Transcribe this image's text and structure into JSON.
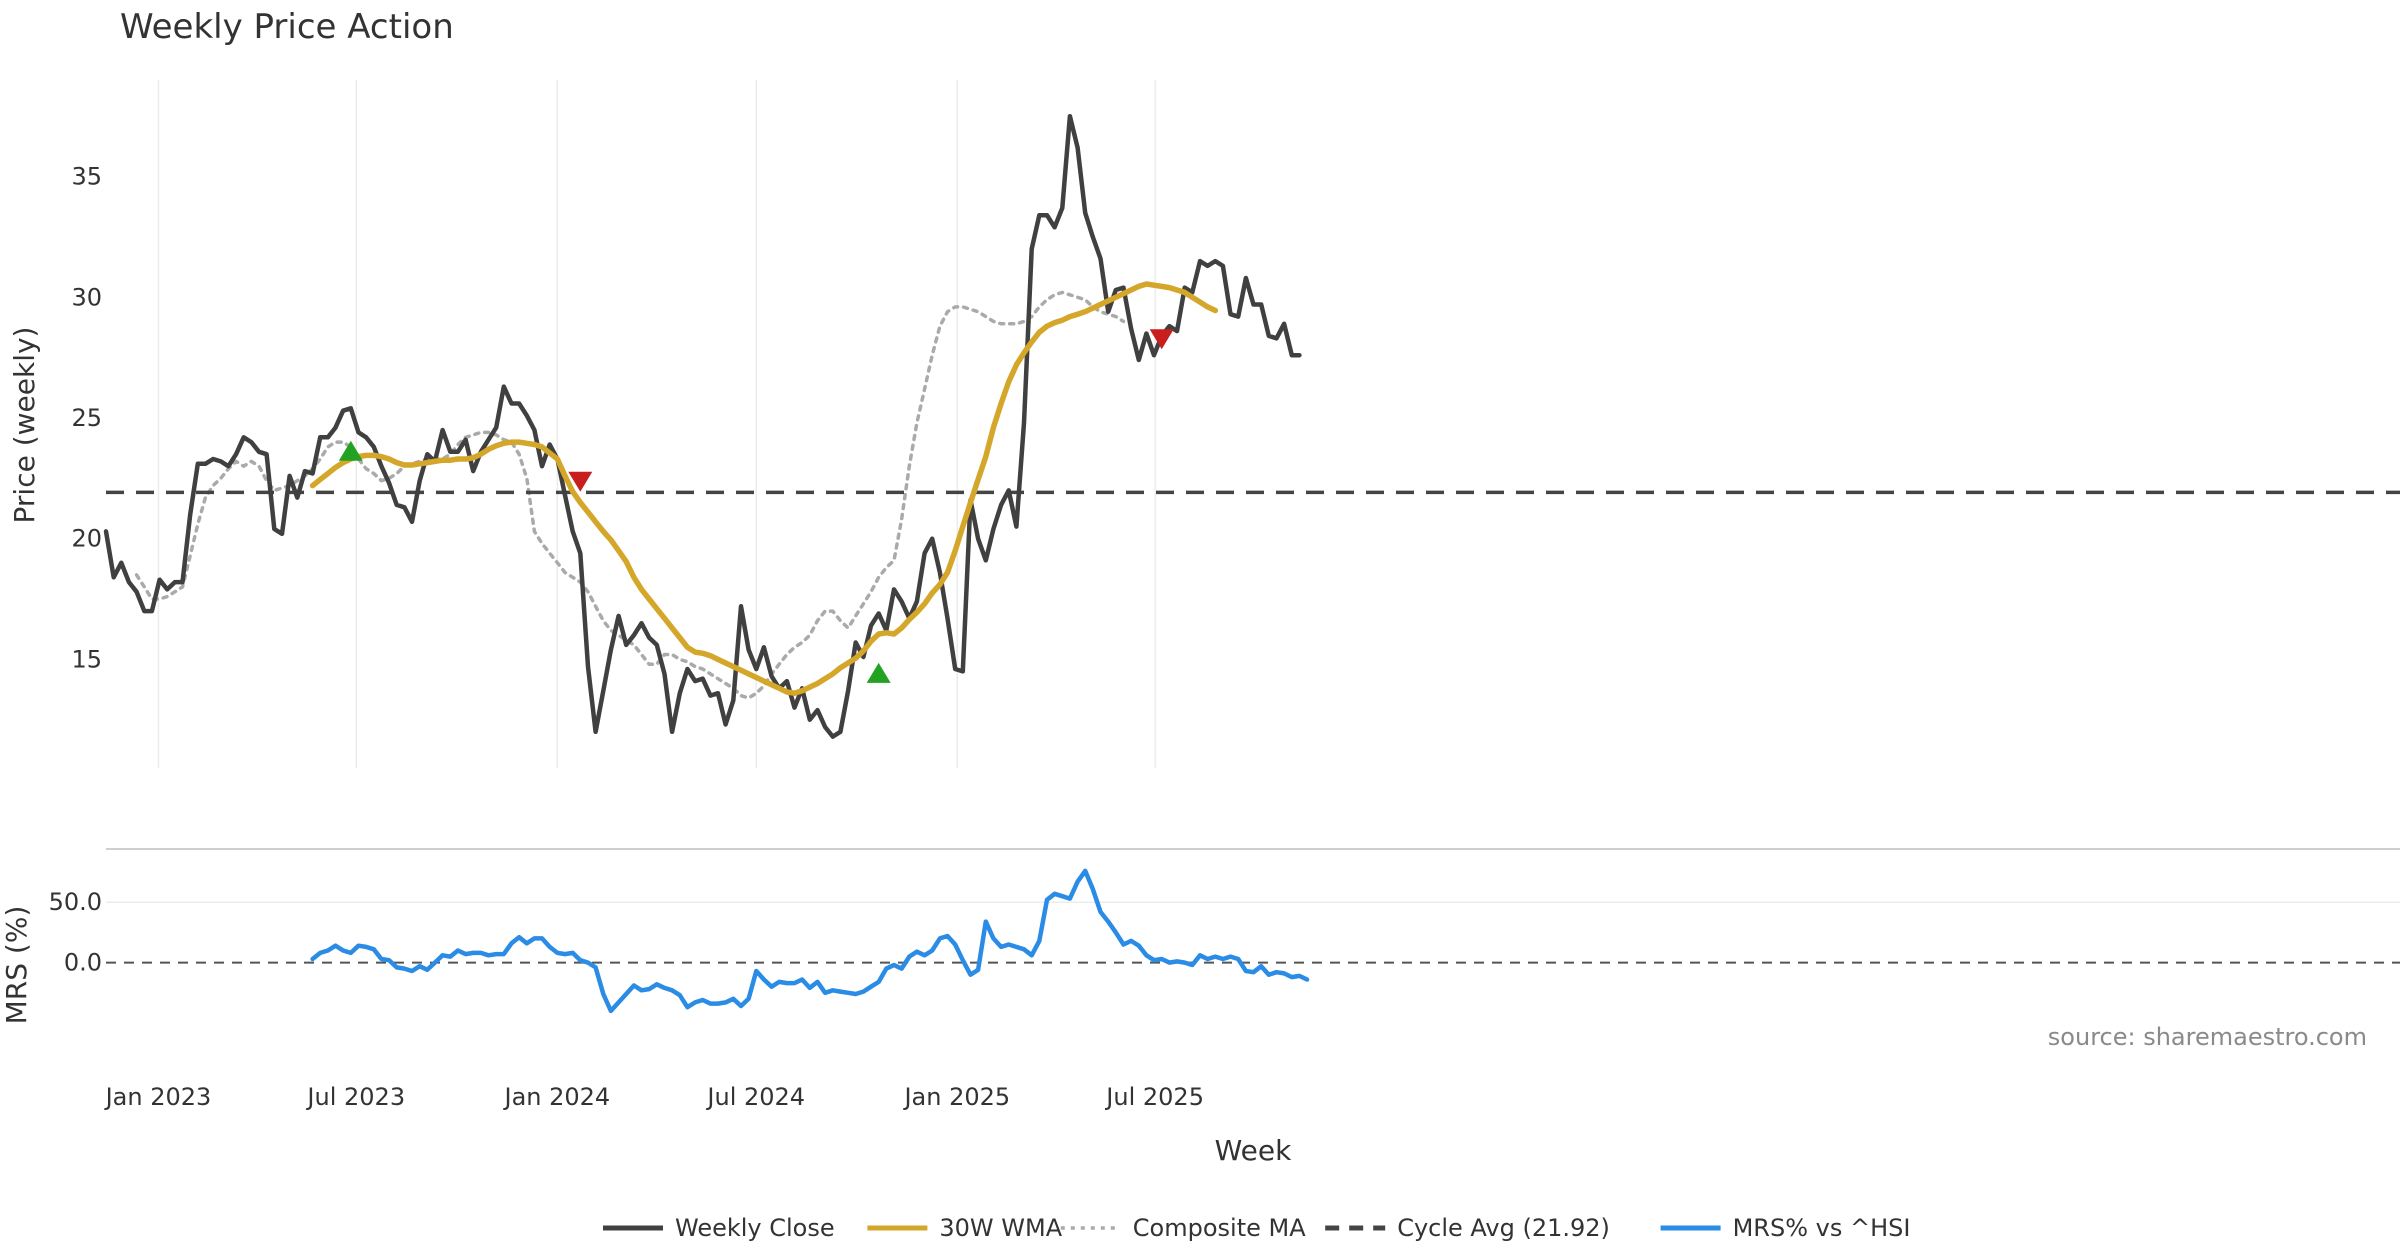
{
  "chart_data": {
    "type": "line",
    "title": "Weekly Price Action",
    "xlabel": "Week",
    "source": "source: sharemaestro.com",
    "x_ticks": [
      "Jan 2023",
      "Jul 2023",
      "Jan 2024",
      "Jul 2024",
      "Jan 2025",
      "Jul 2025"
    ],
    "start_date": "2022-11-14",
    "panels": [
      {
        "name": "price",
        "ylabel": "Price (weekly)",
        "ylim": [
          10.5,
          39
        ],
        "yticks": [
          15,
          20,
          25,
          30,
          35
        ],
        "ytick_labels": [
          "15",
          "20",
          "25",
          "30",
          "35"
        ]
      },
      {
        "name": "mrs",
        "ylabel": "MRS (%)",
        "ylim": [
          -60,
          85
        ],
        "yticks": [
          0,
          50
        ],
        "ytick_labels": [
          "0.0",
          "50.0"
        ]
      }
    ],
    "series": [
      {
        "name": "Weekly Close",
        "panel": "price",
        "color": "#404040",
        "style": "solid",
        "values": [
          20.3,
          18.4,
          19.0,
          18.2,
          17.8,
          17.0,
          17.0,
          18.3,
          17.9,
          18.2,
          18.2,
          21.0,
          23.1,
          23.1,
          23.3,
          23.2,
          23.0,
          23.5,
          24.2,
          24.0,
          23.6,
          23.5,
          20.4,
          20.2,
          22.6,
          21.7,
          22.8,
          22.7,
          24.2,
          24.2,
          24.6,
          25.3,
          25.4,
          24.4,
          24.2,
          23.8,
          23.0,
          22.3,
          21.4,
          21.3,
          20.7,
          22.4,
          23.5,
          23.2,
          24.5,
          23.6,
          23.6,
          24.1,
          22.8,
          23.6,
          24.1,
          24.6,
          26.3,
          25.6,
          25.6,
          25.1,
          24.5,
          23.0,
          23.9,
          23.3,
          21.8,
          20.3,
          19.4,
          14.7,
          12.0,
          13.7,
          15.4,
          16.8,
          15.6,
          16.0,
          16.5,
          15.9,
          15.6,
          14.4,
          12.0,
          13.6,
          14.6,
          14.1,
          14.2,
          13.5,
          13.6,
          12.3,
          13.3,
          17.2,
          15.4,
          14.6,
          15.5,
          14.3,
          13.8,
          14.1,
          13.0,
          13.8,
          12.5,
          12.9,
          12.2,
          11.8,
          12.0,
          13.7,
          15.7,
          15.1,
          16.4,
          16.9,
          16.2,
          17.9,
          17.4,
          16.7,
          17.4,
          19.4,
          20.0,
          18.6,
          16.7,
          14.6,
          14.5,
          21.6,
          20.0,
          19.1,
          20.4,
          21.4,
          22.0,
          20.5,
          24.8,
          32.0,
          33.4,
          33.4,
          32.9,
          33.7,
          37.5,
          36.2,
          33.5,
          32.5,
          31.6,
          29.4,
          30.3,
          30.4,
          28.7,
          27.4,
          28.5,
          27.6,
          28.4,
          28.8,
          28.6,
          30.4,
          30.2,
          31.5,
          31.3,
          31.5,
          31.3,
          29.3,
          29.2,
          30.8,
          29.7,
          29.7,
          28.4,
          28.3,
          28.9,
          27.6,
          27.6
        ]
      },
      {
        "name": "30W WMA",
        "panel": "price",
        "color": "#D4A62A",
        "style": "solid",
        "start_index": 27,
        "values": [
          22.2,
          22.45,
          22.7,
          22.95,
          23.15,
          23.3,
          23.4,
          23.45,
          23.45,
          23.4,
          23.3,
          23.15,
          23.05,
          23.05,
          23.1,
          23.15,
          23.2,
          23.25,
          23.25,
          23.3,
          23.3,
          23.35,
          23.5,
          23.7,
          23.85,
          23.95,
          24.0,
          24.0,
          23.95,
          23.9,
          23.8,
          23.55,
          23.3,
          22.6,
          21.95,
          21.5,
          21.1,
          20.7,
          20.3,
          19.95,
          19.5,
          19.05,
          18.4,
          17.9,
          17.5,
          17.1,
          16.7,
          16.3,
          15.9,
          15.5,
          15.3,
          15.25,
          15.15,
          15.0,
          14.85,
          14.7,
          14.55,
          14.4,
          14.25,
          14.1,
          13.95,
          13.8,
          13.65,
          13.6,
          13.7,
          13.85,
          14.0,
          14.2,
          14.4,
          14.65,
          14.85,
          15.05,
          15.35,
          15.75,
          16.05,
          16.1,
          16.05,
          16.3,
          16.65,
          16.95,
          17.3,
          17.75,
          18.1,
          18.6,
          19.5,
          20.5,
          21.5,
          22.45,
          23.4,
          24.6,
          25.6,
          26.5,
          27.2,
          27.7,
          28.15,
          28.55,
          28.8,
          28.95,
          29.05,
          29.2,
          29.3,
          29.4,
          29.55,
          29.7,
          29.85,
          30.0,
          30.15,
          30.3,
          30.45,
          30.55,
          30.5,
          30.45,
          30.4,
          30.3,
          30.2,
          30.0,
          29.8,
          29.6,
          29.45
        ]
      },
      {
        "name": "Composite MA",
        "panel": "price",
        "color": "#AAAAAA",
        "style": "dotted",
        "start_index": 4,
        "values": [
          18.5,
          18.0,
          17.5,
          17.5,
          17.6,
          17.8,
          18.0,
          19.3,
          20.6,
          21.7,
          22.2,
          22.5,
          22.9,
          23.2,
          23.0,
          23.2,
          23.0,
          22.4,
          22.0,
          22.1,
          22.2,
          22.4,
          22.6,
          22.9,
          23.3,
          23.8,
          24.0,
          24.0,
          23.8,
          23.3,
          22.9,
          22.7,
          22.4,
          22.5,
          22.7,
          23.0,
          23.1,
          23.2,
          23.3,
          23.3,
          23.3,
          23.5,
          23.9,
          24.2,
          24.3,
          24.4,
          24.4,
          24.3,
          24.1,
          24.0,
          23.5,
          22.5,
          20.3,
          19.8,
          19.4,
          19.0,
          18.6,
          18.4,
          18.2,
          17.8,
          17.2,
          16.6,
          16.2,
          16.0,
          15.8,
          15.6,
          15.2,
          14.8,
          14.8,
          15.2,
          15.2,
          15.0,
          14.9,
          14.7,
          14.6,
          14.4,
          14.2,
          14.0,
          13.8,
          13.5,
          13.4,
          13.6,
          13.9,
          14.4,
          14.8,
          15.2,
          15.5,
          15.7,
          16.0,
          16.6,
          17.0,
          17.0,
          16.6,
          16.3,
          16.8,
          17.3,
          17.8,
          18.4,
          18.8,
          19.1,
          20.8,
          23.0,
          24.8,
          26.2,
          27.6,
          28.8,
          29.4,
          29.6,
          29.6,
          29.5,
          29.4,
          29.2,
          29.0,
          28.9,
          28.9,
          28.9,
          29.0,
          29.2,
          29.6,
          29.9,
          30.1,
          30.2,
          30.1,
          30.0,
          29.9,
          29.6,
          29.4,
          29.3,
          29.2,
          29.0
        ]
      },
      {
        "name": "Cycle Avg (21.92)",
        "panel": "price",
        "color": "#444444",
        "style": "dashed",
        "value": 21.92
      },
      {
        "name": "MRS% vs ^HSI",
        "panel": "mrs",
        "color": "#2B8CE6",
        "style": "solid",
        "start_index": 27,
        "values": [
          3,
          8,
          10,
          14,
          10,
          8,
          14,
          13,
          11,
          3,
          2,
          -4,
          -5,
          -7,
          -3,
          -6,
          0,
          6,
          5,
          10,
          7,
          8,
          8,
          6,
          7,
          7,
          16,
          21,
          16,
          20,
          20,
          13,
          8,
          7,
          8,
          2,
          0,
          -4,
          -26,
          -40,
          -33,
          -26,
          -19,
          -23,
          -22,
          -18,
          -21,
          -23,
          -27,
          -37,
          -33,
          -31,
          -34,
          -34,
          -33,
          -30,
          -36,
          -30,
          -7,
          -14,
          -20,
          -16,
          -17,
          -17,
          -14,
          -21,
          -16,
          -25,
          -23,
          -24,
          -25,
          -26,
          -24,
          -20,
          -16,
          -5,
          -2,
          -5,
          5,
          9,
          6,
          10,
          20,
          22,
          15,
          2,
          -10,
          -6,
          34,
          20,
          13,
          15,
          13,
          11,
          6,
          18,
          52,
          57,
          55,
          53,
          67,
          76,
          61,
          42,
          34,
          25,
          15,
          18,
          14,
          6,
          2,
          3,
          0,
          1,
          0,
          -2,
          6,
          3,
          5,
          3,
          5,
          3,
          -7,
          -8,
          -3,
          -10,
          -8,
          -9,
          -12,
          -11,
          -14
        ]
      }
    ],
    "signals": [
      {
        "type": "buy",
        "index": 32,
        "value": 23.6,
        "color": "#22A122"
      },
      {
        "type": "sell",
        "index": 62,
        "value": 22.4,
        "color": "#C81E1E"
      },
      {
        "type": "buy",
        "index": 101,
        "value": 14.4,
        "color": "#22A122"
      },
      {
        "type": "sell",
        "index": 138,
        "value": 28.3,
        "color": "#C81E1E"
      }
    ],
    "legend": [
      {
        "label": "Weekly Close",
        "color": "#404040",
        "style": "solid"
      },
      {
        "label": "30W WMA",
        "color": "#D4A62A",
        "style": "solid"
      },
      {
        "label": "Composite MA",
        "color": "#AAAAAA",
        "style": "dotted"
      },
      {
        "label": "Cycle Avg (21.92)",
        "color": "#444444",
        "style": "dashed"
      },
      {
        "label": "MRS% vs ^HSI",
        "color": "#2B8CE6",
        "style": "solid"
      }
    ]
  }
}
